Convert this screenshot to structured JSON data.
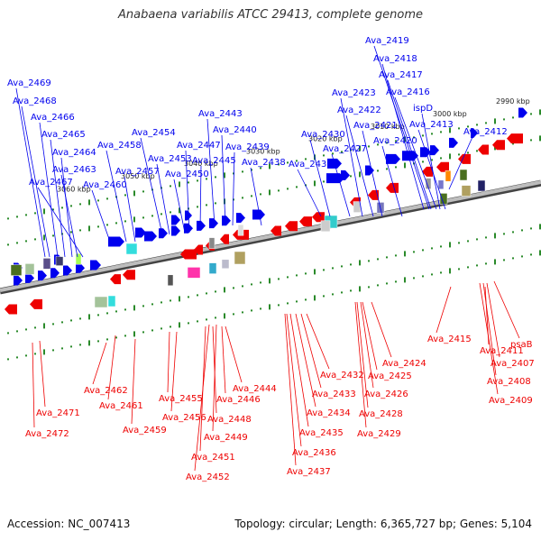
{
  "title": "Anabaena variabilis ATCC 29413, complete genome",
  "footer": {
    "accession": "Accession: NC_007413",
    "summary": "Topology: circular; Length: 6,365,727 bp; Genes: 5,104"
  },
  "colors": {
    "forward": "#0000ee",
    "reverse": "#ee0000",
    "backbone": "#888888",
    "tick": "#2a8a2a"
  },
  "ticks": [
    "2990 kbp",
    "3000 kbp",
    "3010 kbp",
    "3020 kbp",
    "3030 kbp",
    "3040 kbp",
    "3050 kbp",
    "3060 kbp"
  ],
  "forward_labels": [
    "Ava_2469",
    "Ava_2468",
    "Ava_2466",
    "Ava_2465",
    "Ava_2464",
    "Ava_2463",
    "Ava_2467",
    "Ava_2460",
    "Ava_2458",
    "Ava_2457",
    "Ava_2454",
    "Ava_2453",
    "Ava_2450",
    "Ava_2447",
    "Ava_2445",
    "Ava_2443",
    "Ava_2440",
    "Ava_2439",
    "Ava_2438",
    "Ava_2430",
    "Ava_2431",
    "Ava_2427",
    "Ava_2423",
    "Ava_2422",
    "Ava_2421",
    "Ava_2420",
    "Ava_2419",
    "Ava_2418",
    "Ava_2417",
    "Ava_2416",
    "ispD",
    "Ava_2413",
    "Ava_2412"
  ],
  "reverse_labels": [
    "Ava_2462",
    "Ava_2461",
    "Ava_2471",
    "Ava_2472",
    "Ava_2459",
    "Ava_2455",
    "Ava_2456",
    "Ava_2448",
    "Ava_2449",
    "Ava_2451",
    "Ava_2452",
    "Ava_2444",
    "Ava_2446",
    "Ava_2432",
    "Ava_2433",
    "Ava_2434",
    "Ava_2435",
    "Ava_2436",
    "Ava_2437",
    "Ava_2424",
    "Ava_2425",
    "Ava_2426",
    "Ava_2428",
    "Ava_2429",
    "Ava_2415",
    "Ava_2411",
    "psaB",
    "Ava_2407",
    "Ava_2408",
    "Ava_2409"
  ]
}
